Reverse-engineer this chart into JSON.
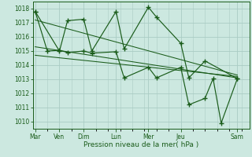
{
  "bg_color": "#cce8e0",
  "grid_color": "#aaccc4",
  "line_color": "#1a5c1a",
  "marker_color": "#1a5c1a",
  "xlabel": "Pression niveau de la mer( hPa )",
  "ylim": [
    1009.5,
    1018.5
  ],
  "yticks": [
    1010,
    1011,
    1012,
    1013,
    1014,
    1015,
    1016,
    1017,
    1018
  ],
  "day_labels": [
    "Mar",
    "Ven",
    "Dim",
    "Lun",
    "Mer",
    "Jeu",
    "Sam"
  ],
  "day_positions": [
    0,
    3,
    6,
    10,
    14,
    18,
    25
  ],
  "xlim": [
    -0.3,
    26.5
  ],
  "series1_x": [
    0,
    3,
    4,
    6,
    7,
    10,
    11,
    14,
    15,
    18,
    19,
    21,
    25
  ],
  "series1_y": [
    1017.8,
    1015.0,
    1017.15,
    1017.25,
    1015.0,
    1017.8,
    1015.15,
    1018.1,
    1017.4,
    1015.55,
    1013.1,
    1014.3,
    1013.05
  ],
  "series2_x": [
    0,
    1.5,
    3,
    4,
    6,
    7,
    10,
    11,
    14,
    15,
    18,
    19,
    21,
    22,
    23,
    25
  ],
  "series2_y": [
    1017.8,
    1015.0,
    1015.05,
    1014.9,
    1015.0,
    1014.85,
    1014.95,
    1013.1,
    1013.85,
    1013.1,
    1013.85,
    1011.2,
    1011.65,
    1013.05,
    1009.9,
    1013.05
  ],
  "trend1_x": [
    0,
    25
  ],
  "trend1_y": [
    1017.2,
    1013.3
  ],
  "trend2_x": [
    0,
    25
  ],
  "trend2_y": [
    1015.3,
    1013.1
  ],
  "trend3_x": [
    0,
    25
  ],
  "trend3_y": [
    1014.7,
    1013.2
  ]
}
